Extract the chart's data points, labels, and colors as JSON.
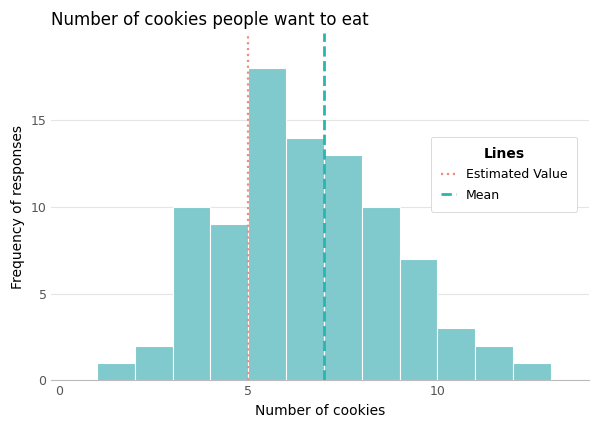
{
  "title": "Number of cookies people want to eat",
  "xlabel": "Number of cookies",
  "ylabel": "Frequency of responses",
  "bar_color": "#80C9CC",
  "bar_edge_color": "white",
  "background_color": "#FFFFFF",
  "panel_color": "#FFFFFF",
  "grid_color": "#E5E5E5",
  "bin_edges": [
    1,
    2,
    3,
    4,
    5,
    6,
    7,
    8,
    9,
    10,
    11,
    12,
    13
  ],
  "frequencies": [
    1,
    2,
    10,
    9,
    18,
    14,
    13,
    10,
    7,
    3,
    2,
    1
  ],
  "estimated_value": 5.0,
  "mean_value": 7.0,
  "estimated_color": "#F28B82",
  "mean_color": "#2AB5B0",
  "xlim": [
    -0.2,
    14
  ],
  "ylim": [
    0,
    20
  ],
  "xticks": [
    0,
    5,
    10
  ],
  "yticks": [
    0,
    5,
    10,
    15
  ],
  "title_fontsize": 12,
  "axis_label_fontsize": 10,
  "tick_fontsize": 9,
  "legend_title": "Lines",
  "legend_label_estimated": "Estimated Value",
  "legend_label_mean": "Mean"
}
